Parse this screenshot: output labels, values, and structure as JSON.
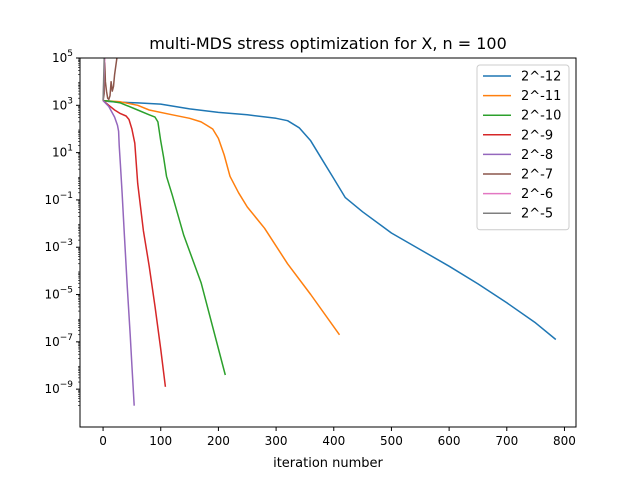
{
  "chart_data": {
    "type": "line",
    "title": "multi-MDS stress optimization for X, n = 100",
    "xlabel": "iteration number",
    "ylabel": "",
    "xlim": [
      -40,
      820
    ],
    "ylim_exp": [
      -10.6,
      5
    ],
    "y_scale": "log",
    "grid": false,
    "legend_position": "top-right",
    "x_ticks": [
      0,
      100,
      200,
      300,
      400,
      500,
      600,
      700,
      800
    ],
    "x_tick_labels": [
      "0",
      "100",
      "200",
      "300",
      "400",
      "500",
      "600",
      "700",
      "800"
    ],
    "y_tick_exps": [
      5,
      3,
      1,
      -1,
      -3,
      -5,
      -7,
      -9
    ],
    "y_tick_base": "10",
    "series": [
      {
        "name": "2^-12",
        "color": "#1f77b4",
        "points": [
          [
            0,
            3.2
          ],
          [
            10,
            3.16
          ],
          [
            30,
            3.13
          ],
          [
            60,
            3.1
          ],
          [
            100,
            3.05
          ],
          [
            150,
            2.85
          ],
          [
            200,
            2.7
          ],
          [
            250,
            2.6
          ],
          [
            300,
            2.45
          ],
          [
            320,
            2.35
          ],
          [
            340,
            2.05
          ],
          [
            360,
            1.5
          ],
          [
            380,
            0.7
          ],
          [
            400,
            -0.1
          ],
          [
            420,
            -0.9
          ],
          [
            450,
            -1.5
          ],
          [
            500,
            -2.4
          ],
          [
            550,
            -3.1
          ],
          [
            600,
            -3.8
          ],
          [
            650,
            -4.55
          ],
          [
            700,
            -5.35
          ],
          [
            750,
            -6.2
          ],
          [
            785,
            -6.9
          ]
        ]
      },
      {
        "name": "2^-11",
        "color": "#ff7f0e",
        "points": [
          [
            0,
            3.2
          ],
          [
            10,
            3.18
          ],
          [
            30,
            3.15
          ],
          [
            60,
            3.0
          ],
          [
            80,
            2.8
          ],
          [
            120,
            2.6
          ],
          [
            150,
            2.45
          ],
          [
            170,
            2.3
          ],
          [
            180,
            2.15
          ],
          [
            190,
            2.0
          ],
          [
            200,
            1.6
          ],
          [
            210,
            0.9
          ],
          [
            220,
            0.0
          ],
          [
            235,
            -0.7
          ],
          [
            250,
            -1.3
          ],
          [
            280,
            -2.2
          ],
          [
            320,
            -3.7
          ],
          [
            360,
            -5.0
          ],
          [
            410,
            -6.7
          ]
        ]
      },
      {
        "name": "2^-10",
        "color": "#2ca02c",
        "points": [
          [
            0,
            3.2
          ],
          [
            10,
            3.18
          ],
          [
            30,
            3.1
          ],
          [
            60,
            2.8
          ],
          [
            80,
            2.6
          ],
          [
            90,
            2.5
          ],
          [
            95,
            2.3
          ],
          [
            100,
            1.5
          ],
          [
            105,
            0.8
          ],
          [
            110,
            0.0
          ],
          [
            120,
            -0.8
          ],
          [
            140,
            -2.5
          ],
          [
            170,
            -4.5
          ],
          [
            212,
            -8.4
          ]
        ]
      },
      {
        "name": "2^-9",
        "color": "#d62728",
        "points": [
          [
            0,
            3.2
          ],
          [
            10,
            3.0
          ],
          [
            20,
            2.8
          ],
          [
            30,
            2.65
          ],
          [
            40,
            2.55
          ],
          [
            45,
            2.4
          ],
          [
            50,
            2.0
          ],
          [
            55,
            1.4
          ],
          [
            60,
            -0.3
          ],
          [
            70,
            -2.3
          ],
          [
            80,
            -3.8
          ],
          [
            90,
            -5.5
          ],
          [
            100,
            -7.3
          ],
          [
            108,
            -8.9
          ]
        ]
      },
      {
        "name": "2^-8",
        "color": "#9467bd",
        "points": [
          [
            0,
            3.2
          ],
          [
            10,
            2.95
          ],
          [
            20,
            2.5
          ],
          [
            25,
            2.15
          ],
          [
            27,
            1.9
          ],
          [
            28,
            1.3
          ],
          [
            30,
            0.5
          ],
          [
            33,
            -0.7
          ],
          [
            37,
            -2.5
          ],
          [
            42,
            -4.7
          ],
          [
            47,
            -6.7
          ],
          [
            50,
            -8.0
          ],
          [
            54,
            -9.7
          ]
        ]
      },
      {
        "name": "2^-7",
        "color": "#8c564b",
        "points": [
          [
            0,
            3.2
          ],
          [
            2,
            3.5
          ],
          [
            3,
            4.8
          ],
          [
            4,
            4.0
          ],
          [
            6,
            3.6
          ],
          [
            8,
            3.3
          ],
          [
            10,
            3.25
          ],
          [
            12,
            3.4
          ],
          [
            14,
            4.0
          ],
          [
            16,
            3.6
          ],
          [
            18,
            3.8
          ],
          [
            20,
            4.3
          ],
          [
            24,
            5.0
          ]
        ]
      },
      {
        "name": "2^-6",
        "color": "#e377c2",
        "points": [
          [
            0,
            3.2
          ],
          [
            3,
            5.0
          ]
        ]
      },
      {
        "name": "2^-5",
        "color": "#7f7f7f",
        "points": [
          [
            0,
            3.2
          ],
          [
            2,
            5.0
          ]
        ]
      }
    ]
  }
}
